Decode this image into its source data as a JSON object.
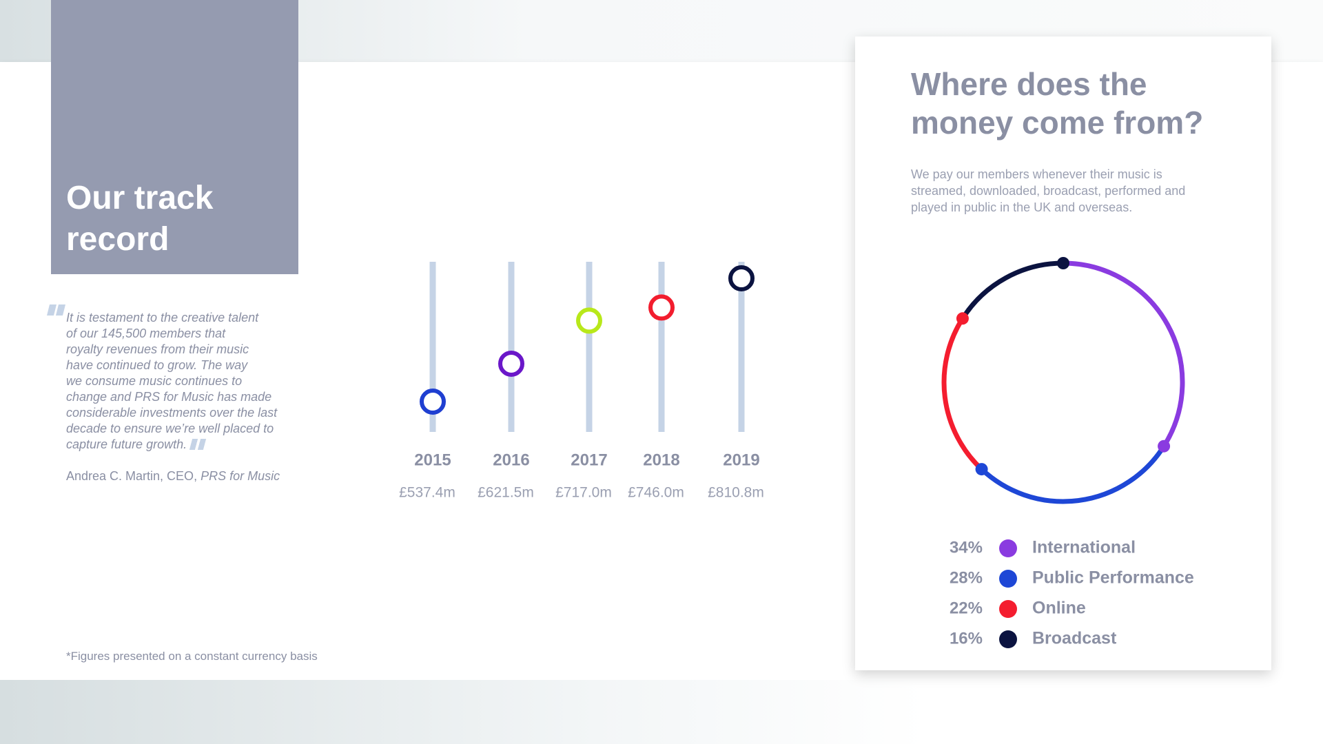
{
  "header": {
    "title": "Our track record"
  },
  "quote": {
    "lines": [
      "It is testament to the creative talent",
      "of our 145,500 members that",
      "royalty revenues from their music",
      "have continued to grow. The way",
      "we consume music continues to",
      "change and PRS for Music has made",
      "considerable investments over the last",
      "decade to ensure we’re well placed to",
      "capture future growth."
    ],
    "author": "Andrea C. Martin, CEO,",
    "organization": "PRS for Music"
  },
  "footnote": "*Figures presented on a constant currency basis",
  "chart_data": [
    {
      "type": "dot",
      "categories": [
        "2015",
        "2016",
        "2017",
        "2018",
        "2019"
      ],
      "values": [
        537.4,
        621.5,
        717.0,
        746.0,
        810.8
      ],
      "value_labels": [
        "£537.4m",
        "£621.5m",
        "£717.0m",
        "£746.0m",
        "£810.8m"
      ],
      "colors": [
        "#1f3fd1",
        "#6a17c9",
        "#b8e81a",
        "#f21d2e",
        "#0b1340"
      ]
    },
    {
      "type": "donut",
      "title": "Where does the money come from?",
      "subtitle": [
        "We pay our members whenever their music is",
        "streamed, downloaded, broadcast, performed and",
        "played in public in the UK and overseas."
      ],
      "categories": [
        "International",
        "Public Performance",
        "Online",
        "Broadcast"
      ],
      "values": [
        34,
        28,
        22,
        16
      ],
      "value_labels": [
        "34%",
        "28%",
        "22%",
        "16%"
      ],
      "colors": [
        "#8a3be0",
        "#1e47d6",
        "#f41d2f",
        "#0b1340"
      ]
    }
  ]
}
